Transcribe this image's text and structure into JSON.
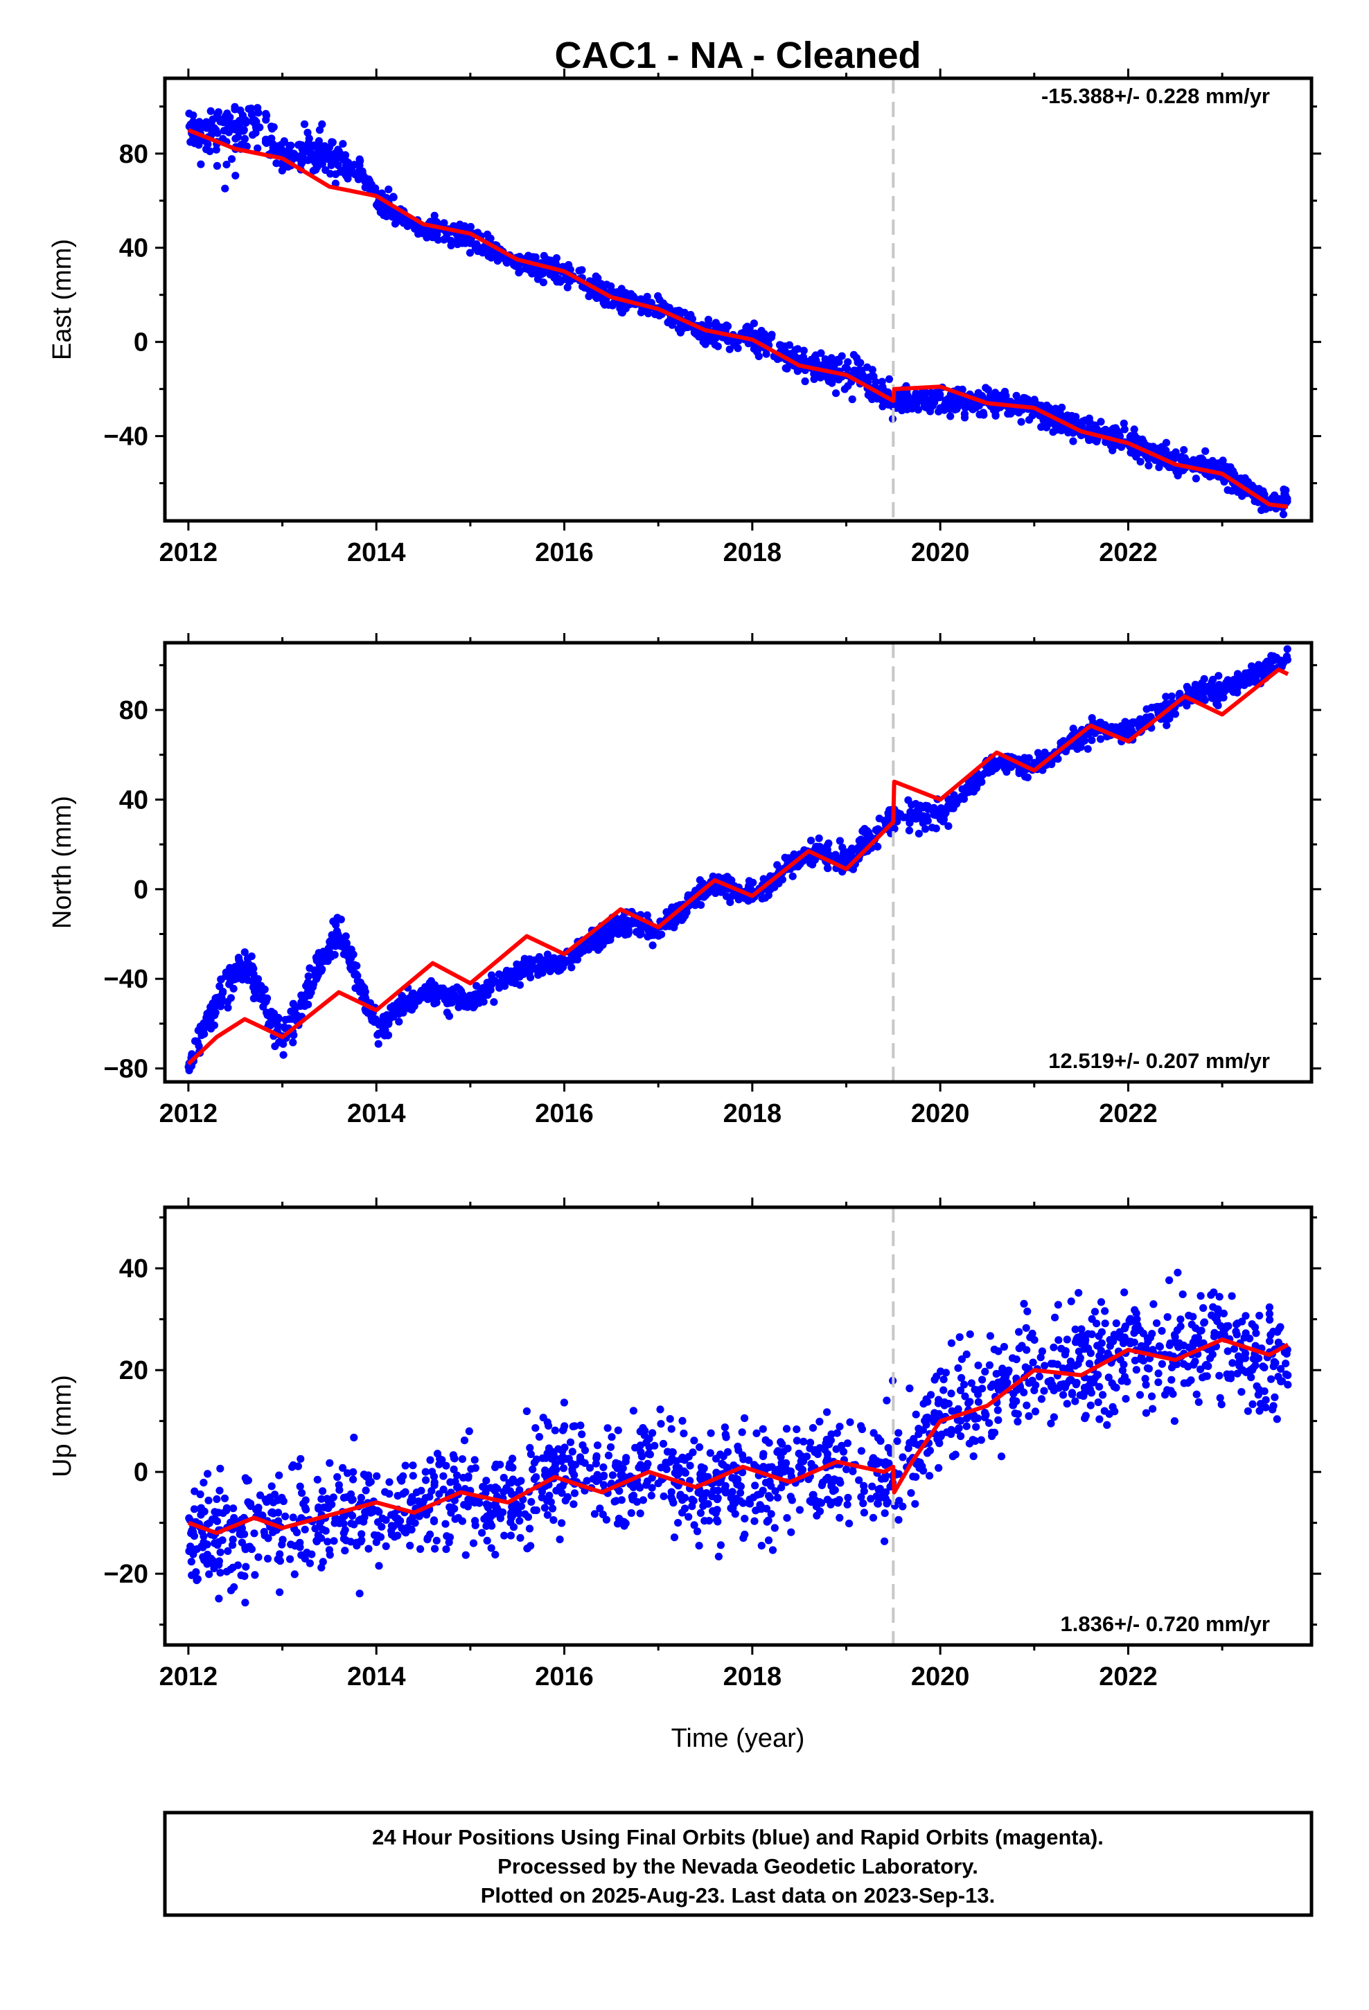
{
  "title": "CAC1  - NA - Cleaned",
  "colors": {
    "points": "#0000ff",
    "fit": "#ff0000",
    "event_line": "#c8c8c8",
    "frame": "#000000"
  },
  "chart_data": [
    {
      "type": "scatter",
      "panel": "east",
      "ylabel": "East (mm)",
      "xlabel": "",
      "xlim": [
        2011.75,
        2023.95
      ],
      "ylim": [
        -76,
        112
      ],
      "xticks": [
        2012,
        2014,
        2016,
        2018,
        2020,
        2022
      ],
      "yticks": [
        -40,
        0,
        40,
        80
      ],
      "event_line_x": 2019.5,
      "rate_label": "-15.388+/- 0.228 mm/yr",
      "rate_position": "top-right",
      "points_x_range": [
        2012.0,
        2023.7
      ],
      "fit_series": {
        "x": [
          2012.0,
          2012.5,
          2013.0,
          2013.5,
          2014.0,
          2014.5,
          2015.0,
          2015.5,
          2016.0,
          2016.5,
          2017.0,
          2017.5,
          2018.0,
          2018.5,
          2019.0,
          2019.5,
          2019.51,
          2020.0,
          2020.5,
          2021.0,
          2021.5,
          2022.0,
          2022.5,
          2023.0,
          2023.5,
          2023.7
        ],
        "y": [
          90,
          82,
          78,
          66,
          62,
          50,
          46,
          35,
          30,
          19,
          14,
          5,
          1,
          -10,
          -14,
          -25,
          -20,
          -19,
          -26,
          -28,
          -38,
          -43,
          -52,
          -56,
          -69,
          -70
        ]
      },
      "point_trend": {
        "x": [
          2012.0,
          2012.4,
          2012.8,
          2013.0,
          2013.5,
          2013.9,
          2014.0,
          2014.5,
          2015.0,
          2015.5,
          2016.0,
          2016.5,
          2017.0,
          2017.5,
          2018.0,
          2018.5,
          2019.0,
          2019.5,
          2020.0,
          2020.5,
          2021.0,
          2021.5,
          2022.0,
          2022.5,
          2023.0,
          2023.5,
          2023.7
        ],
        "y": [
          90,
          88,
          92,
          78,
          80,
          70,
          60,
          48,
          44,
          33,
          30,
          18,
          14,
          4,
          2,
          -9,
          -13,
          -24,
          -25,
          -25,
          -29,
          -37,
          -42,
          -51,
          -55,
          -68,
          -68
        ],
        "scatter": [
          2.5,
          7,
          5,
          3,
          6,
          3,
          2.5,
          2.5,
          2.5,
          2.5,
          2.5,
          2.5,
          2.5,
          2.5,
          2.5,
          3,
          3.5,
          3,
          2.5,
          2.5,
          2.5,
          2.5,
          2.5,
          2.5,
          2.5,
          2.5,
          2.5
        ]
      }
    },
    {
      "type": "scatter",
      "panel": "north",
      "ylabel": "North (mm)",
      "xlabel": "",
      "xlim": [
        2011.75,
        2023.95
      ],
      "ylim": [
        -86,
        110
      ],
      "xticks": [
        2012,
        2014,
        2016,
        2018,
        2020,
        2022
      ],
      "yticks": [
        -80,
        -40,
        0,
        40,
        80
      ],
      "event_line_x": 2019.5,
      "rate_label": "12.519+/- 0.207 mm/yr",
      "rate_position": "bottom-right",
      "points_x_range": [
        2012.0,
        2023.7
      ],
      "fit_series": {
        "x": [
          2012.0,
          2012.3,
          2012.6,
          2013.0,
          2013.6,
          2014.0,
          2014.6,
          2015.0,
          2015.6,
          2016.0,
          2016.6,
          2017.0,
          2017.6,
          2018.0,
          2018.6,
          2019.0,
          2019.5,
          2019.51,
          2020.0,
          2020.6,
          2021.0,
          2021.6,
          2022.0,
          2022.6,
          2023.0,
          2023.6,
          2023.7
        ],
        "y": [
          -78,
          -66,
          -58,
          -66,
          -46,
          -54,
          -33,
          -42,
          -21,
          -29,
          -9,
          -17,
          4,
          -3,
          17,
          9,
          30,
          48,
          40,
          61,
          53,
          73,
          66,
          86,
          78,
          98,
          96
        ]
      },
      "point_trend": {
        "x": [
          2012.0,
          2012.3,
          2012.6,
          2013.0,
          2013.6,
          2014.0,
          2014.5,
          2015.0,
          2015.6,
          2016.0,
          2016.6,
          2017.0,
          2017.6,
          2018.0,
          2018.6,
          2019.0,
          2019.5,
          2020.0,
          2020.6,
          2021.0,
          2021.6,
          2022.0,
          2022.6,
          2023.0,
          2023.5,
          2023.7
        ],
        "y": [
          -78,
          -50,
          -33,
          -68,
          -18,
          -62,
          -46,
          -50,
          -35,
          -32,
          -15,
          -18,
          3,
          -3,
          16,
          12,
          33,
          33,
          57,
          55,
          71,
          70,
          86,
          89,
          99,
          102
        ],
        "scatter": [
          3,
          4,
          4,
          5,
          4,
          3,
          2.5,
          2.5,
          2.5,
          2.5,
          2.5,
          2.5,
          2.5,
          2.5,
          2.5,
          2.5,
          3,
          2.5,
          2.5,
          2.5,
          2.5,
          2.5,
          2.5,
          2.5,
          2.5,
          2.5
        ]
      }
    },
    {
      "type": "scatter",
      "panel": "up",
      "ylabel": "Up (mm)",
      "xlabel": "Time (year)",
      "xlim": [
        2011.75,
        2023.95
      ],
      "ylim": [
        -34,
        52
      ],
      "xticks": [
        2012,
        2014,
        2016,
        2018,
        2020,
        2022
      ],
      "yticks": [
        -20,
        0,
        20,
        40
      ],
      "event_line_x": 2019.5,
      "rate_label": "1.836+/- 0.720 mm/yr",
      "rate_position": "bottom-right",
      "points_x_range": [
        2012.0,
        2023.7
      ],
      "fit_series": {
        "x": [
          2012.0,
          2012.3,
          2012.7,
          2013.0,
          2013.4,
          2014.0,
          2014.4,
          2014.9,
          2015.4,
          2015.9,
          2016.4,
          2016.9,
          2017.4,
          2017.9,
          2018.4,
          2018.9,
          2019.4,
          2019.5,
          2019.51,
          2019.7,
          2020.0,
          2020.5,
          2021.0,
          2021.5,
          2022.0,
          2022.5,
          2023.0,
          2023.5,
          2023.7
        ],
        "y": [
          -10,
          -12,
          -9,
          -11,
          -9,
          -6,
          -8,
          -4,
          -6,
          -1,
          -4,
          0,
          -3,
          1,
          -2,
          2,
          0,
          1,
          -4,
          2,
          10,
          13,
          20,
          19,
          24,
          22,
          26,
          23,
          25
        ]
      },
      "point_trend": {
        "x": [
          2012.0,
          2012.5,
          2013.0,
          2013.5,
          2014.0,
          2014.5,
          2015.0,
          2015.5,
          2016.0,
          2016.5,
          2017.0,
          2017.5,
          2018.0,
          2018.5,
          2019.0,
          2019.5,
          2020.0,
          2020.5,
          2021.0,
          2021.5,
          2022.0,
          2022.5,
          2023.0,
          2023.5,
          2023.7
        ],
        "y": [
          -13,
          -12,
          -10,
          -9,
          -7,
          -6,
          -4,
          -6,
          1,
          -2,
          0,
          -3,
          -2,
          -1,
          0,
          -1,
          11,
          14,
          20,
          20,
          24,
          24,
          26,
          21,
          23
        ],
        "scatter": [
          5.5,
          5.5,
          5.5,
          5.5,
          5,
          5,
          5,
          5,
          5,
          5,
          5,
          5,
          5,
          5,
          5,
          5,
          5.5,
          5.5,
          5.5,
          5.5,
          5.5,
          5.5,
          5.5,
          5,
          5
        ]
      }
    }
  ],
  "footer": {
    "line1": "24 Hour Positions Using Final Orbits (blue) and Rapid Orbits (magenta).",
    "line2": "Processed by the Nevada Geodetic Laboratory.",
    "line3": "Plotted on 2025-Aug-23. Last data on 2023-Sep-13."
  }
}
